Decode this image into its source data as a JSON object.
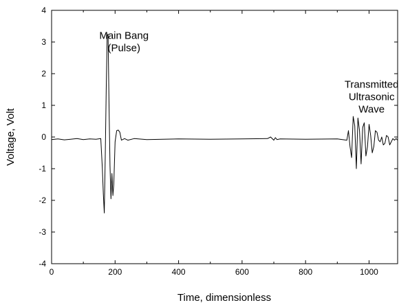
{
  "chart_data": {
    "type": "line",
    "title": "",
    "xlabel": "Time, dimensionless",
    "ylabel": "Voltage, Volt",
    "xlim": [
      0,
      1090
    ],
    "ylim": [
      -4,
      4
    ],
    "xticks": [
      0,
      200,
      400,
      600,
      800,
      1000
    ],
    "yticks": [
      -4,
      -3,
      -2,
      -1,
      0,
      1,
      2,
      3,
      4
    ],
    "grid": false,
    "annotations": [
      {
        "lines": [
          "Main Bang",
          "(Pulse)"
        ],
        "x": 228,
        "y": 3.1
      },
      {
        "lines": [
          "Transmitted",
          "Ultrasonic",
          "Wave"
        ],
        "x": 1008,
        "y": 1.55
      }
    ],
    "series": [
      {
        "name": "",
        "color": "#000000",
        "x": [
          0,
          20,
          40,
          60,
          80,
          100,
          120,
          140,
          155,
          160,
          163,
          166,
          169,
          172,
          175,
          178,
          181,
          184,
          187,
          190,
          193,
          196,
          200,
          205,
          210,
          215,
          220,
          230,
          240,
          260,
          300,
          400,
          500,
          600,
          680,
          690,
          700,
          705,
          710,
          720,
          800,
          900,
          930,
          935,
          940,
          945,
          950,
          955,
          960,
          965,
          970,
          975,
          980,
          985,
          990,
          995,
          1000,
          1005,
          1010,
          1015,
          1020,
          1025,
          1030,
          1035,
          1040,
          1045,
          1050,
          1055,
          1060,
          1065,
          1070,
          1075,
          1080,
          1085,
          1090
        ],
        "y": [
          -0.08,
          -0.06,
          -0.09,
          -0.07,
          -0.05,
          -0.08,
          -0.06,
          -0.07,
          -0.05,
          -1.0,
          -1.8,
          -2.4,
          -0.6,
          1.5,
          3.2,
          3.25,
          1.0,
          -0.9,
          -1.95,
          -1.15,
          -1.85,
          -1.5,
          -0.15,
          0.2,
          0.22,
          0.15,
          -0.1,
          -0.05,
          -0.1,
          -0.05,
          -0.08,
          -0.06,
          -0.07,
          -0.06,
          -0.05,
          0.0,
          -0.1,
          -0.02,
          -0.08,
          -0.06,
          -0.07,
          -0.06,
          -0.1,
          0.2,
          -0.3,
          -0.65,
          0.65,
          0.35,
          -1.0,
          0.6,
          0.2,
          -0.85,
          0.3,
          0.45,
          -0.6,
          -0.3,
          0.4,
          0.05,
          -0.5,
          -0.3,
          0.2,
          0.15,
          -0.1,
          -0.15,
          0.0,
          -0.25,
          -0.2,
          0.05,
          0.0,
          -0.25,
          -0.15,
          -0.05,
          -0.1,
          -0.05,
          -0.1
        ]
      }
    ]
  }
}
